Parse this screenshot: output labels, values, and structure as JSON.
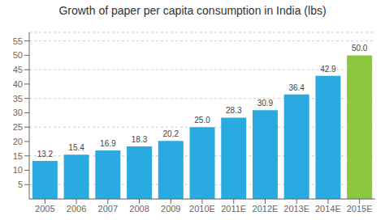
{
  "chart_data": {
    "type": "bar",
    "title": "Growth of paper per capita consumption in India (lbs)",
    "categories": [
      "2005",
      "2006",
      "2007",
      "2008",
      "2009",
      "2010E",
      "2011E",
      "2012E",
      "2013E",
      "2014E",
      "2015E"
    ],
    "values": [
      13.2,
      15.4,
      16.9,
      18.3,
      20.2,
      25.0,
      28.3,
      30.9,
      36.4,
      42.9,
      50.0
    ],
    "value_labels": [
      "13.2",
      "15.4",
      "16.9",
      "18.3",
      "20.2",
      "25.0",
      "28.3",
      "30.9",
      "36.4",
      "42.9",
      "50.0"
    ],
    "colors": [
      "#29ABE2",
      "#29ABE2",
      "#29ABE2",
      "#29ABE2",
      "#29ABE2",
      "#29ABE2",
      "#29ABE2",
      "#29ABE2",
      "#29ABE2",
      "#29ABE2",
      "#8DC63F"
    ],
    "ylim": [
      0,
      58
    ],
    "yticks": [
      5,
      10,
      15,
      20,
      25,
      30,
      35,
      40,
      45,
      50,
      55
    ],
    "grid": true,
    "data_labels": true
  }
}
